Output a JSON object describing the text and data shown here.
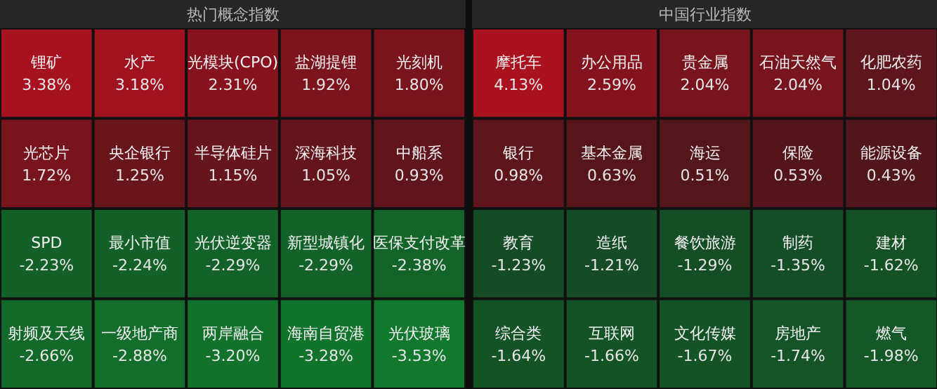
{
  "chart_data": [
    {
      "type": "other",
      "title": "热门概念指数",
      "categories": [
        "锂矿",
        "水产",
        "光模块(CPO)",
        "盐湖提锂",
        "光刻机",
        "光芯片",
        "央企银行",
        "半导体硅片",
        "深海科技",
        "中船系",
        "SPD",
        "最小市值",
        "光伏逆变器",
        "新型城镇化",
        "医保支付改革",
        "射频及天线",
        "一级地产商",
        "两岸融合",
        "海南自贸港",
        "光伏玻璃"
      ],
      "values": [
        3.38,
        3.18,
        2.31,
        1.92,
        1.8,
        1.72,
        1.25,
        1.15,
        1.05,
        0.93,
        -2.23,
        -2.24,
        -2.29,
        -2.29,
        -2.38,
        -2.66,
        -2.88,
        -3.2,
        -3.28,
        -3.53
      ],
      "value_labels": [
        "3.38%",
        "3.18%",
        "2.31%",
        "1.92%",
        "1.80%",
        "1.72%",
        "1.25%",
        "1.15%",
        "1.05%",
        "0.93%",
        "-2.23%",
        "-2.24%",
        "-2.29%",
        "-2.29%",
        "-2.38%",
        "-2.66%",
        "-2.88%",
        "-3.20%",
        "-3.28%",
        "-3.53%"
      ]
    },
    {
      "type": "other",
      "title": "中国行业指数",
      "categories": [
        "摩托车",
        "办公用品",
        "贵金属",
        "石油天然气",
        "化肥农药",
        "银行",
        "基本金属",
        "海运",
        "保险",
        "能源设备",
        "教育",
        "造纸",
        "餐饮旅游",
        "制药",
        "建材",
        "综合类",
        "互联网",
        "文化传媒",
        "房地产",
        "燃气"
      ],
      "values": [
        4.13,
        2.59,
        2.04,
        2.04,
        1.04,
        0.98,
        0.63,
        0.51,
        0.53,
        0.43,
        -1.23,
        -1.21,
        -1.29,
        -1.35,
        -1.62,
        -1.64,
        -1.66,
        -1.67,
        -1.74,
        -1.98
      ],
      "value_labels": [
        "4.13%",
        "2.59%",
        "2.04%",
        "2.04%",
        "1.04%",
        "0.98%",
        "0.63%",
        "0.51%",
        "0.53%",
        "0.43%",
        "-1.23%",
        "-1.21%",
        "-1.29%",
        "-1.35%",
        "-1.62%",
        "-1.64%",
        "-1.66%",
        "-1.67%",
        "-1.74%",
        "-1.98%"
      ]
    }
  ]
}
